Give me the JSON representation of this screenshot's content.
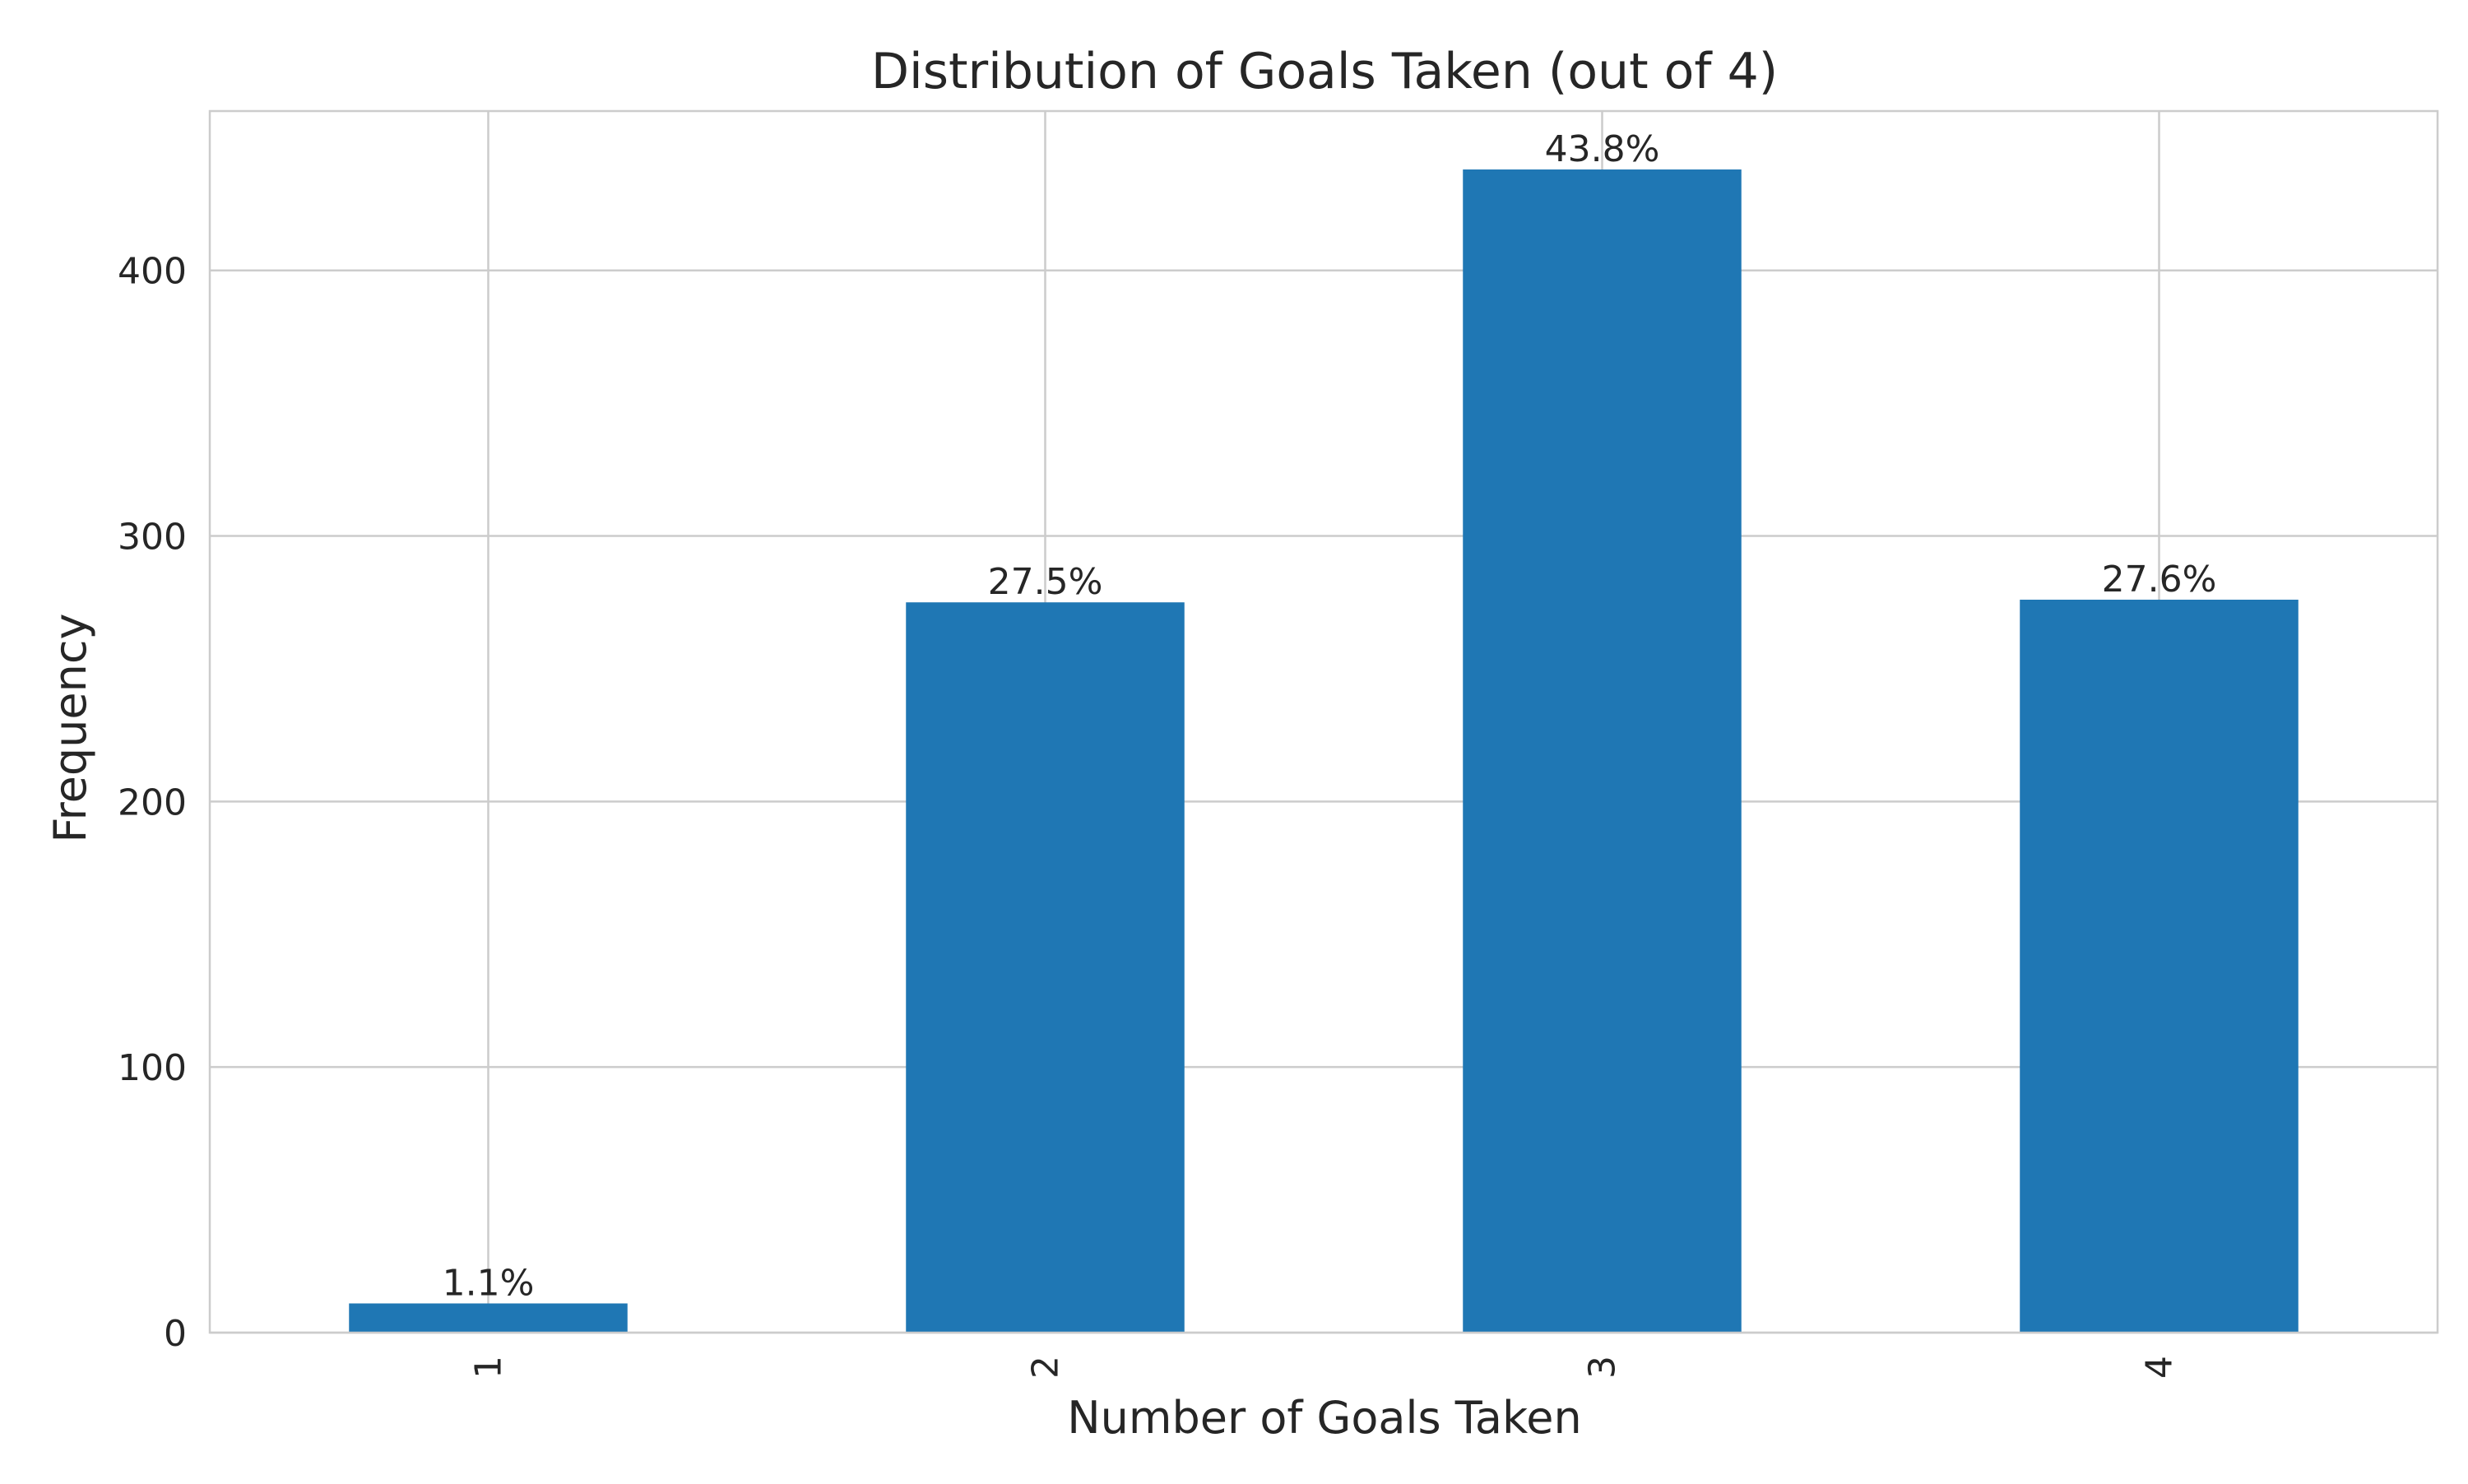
{
  "chart_data": {
    "type": "bar",
    "title": "Distribution of Goals Taken (out of 4)",
    "xlabel": "Number of Goals Taken",
    "ylabel": "Frequency",
    "categories": [
      "1",
      "2",
      "3",
      "4"
    ],
    "values": [
      11,
      275,
      438,
      276
    ],
    "bar_labels": [
      "1.1%",
      "27.5%",
      "43.8%",
      "27.6%"
    ],
    "yticks": [
      0,
      100,
      200,
      300,
      400
    ],
    "ylim": [
      0,
      460
    ],
    "grid": true,
    "x_tick_rotation": 90,
    "bar_color": "#1f77b4"
  }
}
